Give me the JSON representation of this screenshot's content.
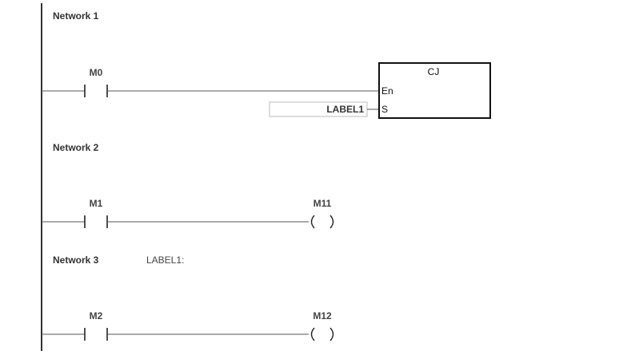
{
  "networks": [
    {
      "title": "Network 1",
      "label": "",
      "contact": "M0",
      "function_block": {
        "name": "CJ",
        "pin_en": "En",
        "pin_s": "S",
        "operand": "LABEL1"
      }
    },
    {
      "title": "Network 2",
      "label": "",
      "contact": "M1",
      "coil": "M11"
    },
    {
      "title": "Network 3",
      "label": "LABEL1:",
      "contact": "M2",
      "coil": "M12"
    }
  ]
}
